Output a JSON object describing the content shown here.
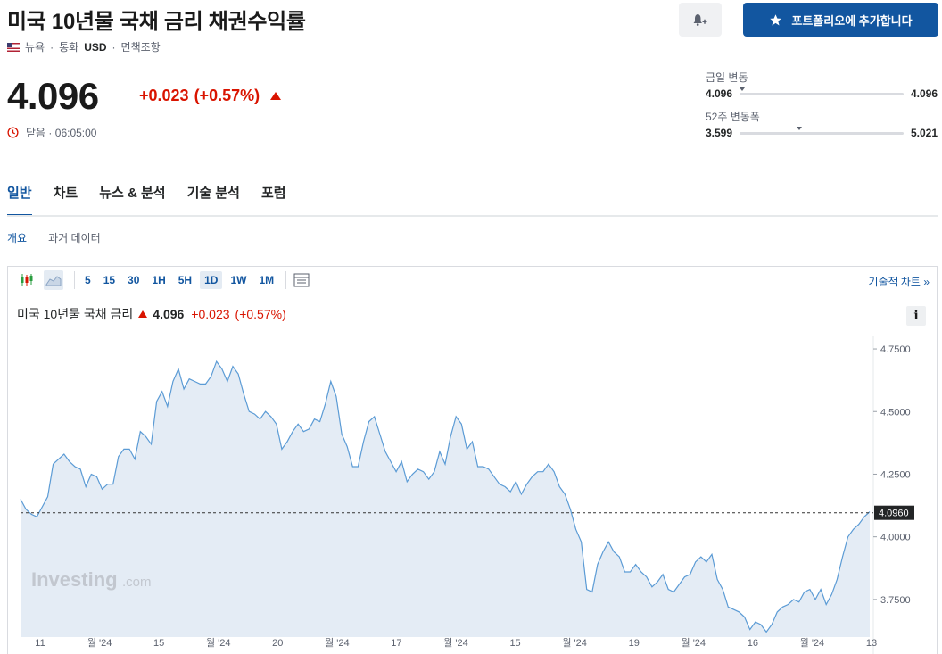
{
  "header": {
    "title": "미국 10년물 국채 금리 채권수익률",
    "location": "뉴욕",
    "currency_label": "통화",
    "currency": "USD",
    "disclaimer": "면책조항",
    "add_portfolio": "포트폴리오에 추가합니다"
  },
  "quote": {
    "price": "4.096",
    "change": "+0.023",
    "change_pct": "(+0.57%)",
    "status": "닫음",
    "time": "06:05:00"
  },
  "ranges": {
    "day": {
      "label": "금일 변동",
      "low": "4.096",
      "high": "4.096",
      "position": 0.0
    },
    "week52": {
      "label": "52주 변동폭",
      "low": "3.599",
      "high": "5.021",
      "position": 0.35
    }
  },
  "tabs": [
    "일반",
    "차트",
    "뉴스 & 분석",
    "기술 분석",
    "포럼"
  ],
  "subtabs": [
    "개요",
    "과거 데이터"
  ],
  "toolbar": {
    "intervals": [
      "5",
      "15",
      "30",
      "1H",
      "5H",
      "1D",
      "1W",
      "1M"
    ],
    "active_interval": "1D",
    "tech_chart": "기술적 차트"
  },
  "legend": {
    "name": "미국 10년물 국채 금리",
    "value": "4.096",
    "change": "+0.023",
    "change_pct": "(+0.57%)",
    "info": "i"
  },
  "brand": {
    "name": "Investing",
    "suffix": ".com"
  },
  "colors": {
    "accent": "#1256a0",
    "down_up_red": "#d91400",
    "area_fill": "#e4ecf5",
    "line": "#5b9bd5"
  },
  "chart_data": {
    "type": "area",
    "current_label": "4.0960",
    "ylim": [
      3.6,
      4.8
    ],
    "yticks": [
      4.75,
      4.5,
      4.25,
      4.0,
      3.75
    ],
    "ytick_labels": [
      "4.7500",
      "4.5000",
      "4.2500",
      "4.0000",
      "3.7500"
    ],
    "xtick_labels": [
      "11",
      "월 '24",
      "15",
      "월 '24",
      "20",
      "월 '24",
      "17",
      "월 '24",
      "15",
      "월 '24",
      "19",
      "월 '24",
      "16",
      "월 '24",
      "13"
    ],
    "values": [
      4.15,
      4.11,
      4.09,
      4.08,
      4.12,
      4.16,
      4.29,
      4.31,
      4.33,
      4.3,
      4.28,
      4.27,
      4.2,
      4.25,
      4.24,
      4.19,
      4.21,
      4.21,
      4.32,
      4.35,
      4.35,
      4.31,
      4.42,
      4.4,
      4.37,
      4.54,
      4.58,
      4.52,
      4.62,
      4.67,
      4.59,
      4.63,
      4.62,
      4.61,
      4.61,
      4.64,
      4.7,
      4.67,
      4.62,
      4.68,
      4.65,
      4.57,
      4.5,
      4.49,
      4.47,
      4.5,
      4.48,
      4.45,
      4.35,
      4.38,
      4.42,
      4.45,
      4.42,
      4.43,
      4.47,
      4.46,
      4.53,
      4.62,
      4.56,
      4.41,
      4.36,
      4.28,
      4.28,
      4.38,
      4.46,
      4.48,
      4.41,
      4.34,
      4.3,
      4.26,
      4.3,
      4.22,
      4.25,
      4.27,
      4.26,
      4.23,
      4.26,
      4.34,
      4.29,
      4.4,
      4.48,
      4.45,
      4.35,
      4.38,
      4.28,
      4.28,
      4.27,
      4.24,
      4.21,
      4.2,
      4.18,
      4.22,
      4.17,
      4.21,
      4.24,
      4.26,
      4.26,
      4.29,
      4.26,
      4.2,
      4.17,
      4.11,
      4.03,
      3.98,
      3.79,
      3.78,
      3.89,
      3.94,
      3.98,
      3.94,
      3.92,
      3.86,
      3.86,
      3.89,
      3.86,
      3.84,
      3.8,
      3.82,
      3.85,
      3.79,
      3.78,
      3.81,
      3.84,
      3.85,
      3.9,
      3.92,
      3.9,
      3.93,
      3.83,
      3.79,
      3.72,
      3.71,
      3.7,
      3.68,
      3.63,
      3.66,
      3.65,
      3.62,
      3.65,
      3.7,
      3.72,
      3.73,
      3.75,
      3.74,
      3.78,
      3.79,
      3.75,
      3.79,
      3.73,
      3.77,
      3.83,
      3.92,
      4.0,
      4.03,
      4.05,
      4.08,
      4.1
    ]
  }
}
